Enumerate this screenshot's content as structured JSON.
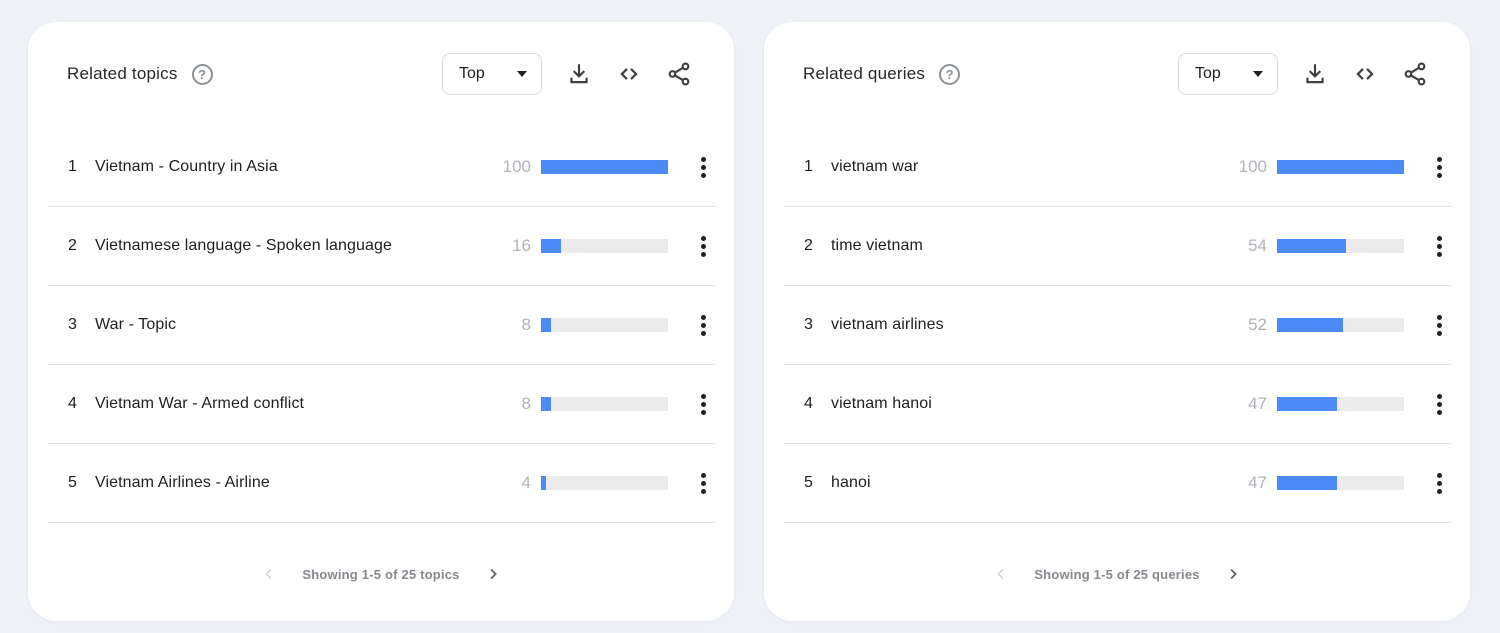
{
  "colors": {
    "page_background": "#eef1f6",
    "card_background": "#ffffff",
    "bar_fill": "#4c8bf5",
    "bar_track": "#ebebeb",
    "divider": "#e4e4e4",
    "text_primary": "#202124",
    "text_value": "#b0b4b9",
    "text_pagination": "#85898e",
    "icon": "#3c4043"
  },
  "cards": [
    {
      "title": "Related topics",
      "help_icon": "help-icon",
      "sort_label": "Top",
      "toolbar_icons": [
        "download-icon",
        "embed-icon",
        "share-icon"
      ],
      "rows": [
        {
          "rank": "1",
          "label": "Vietnam - Country in Asia",
          "value": 100
        },
        {
          "rank": "2",
          "label": "Vietnamese language - Spoken language",
          "value": 16
        },
        {
          "rank": "3",
          "label": "War - Topic",
          "value": 8
        },
        {
          "rank": "4",
          "label": "Vietnam War - Armed conflict",
          "value": 8
        },
        {
          "rank": "5",
          "label": "Vietnam Airlines - Airline",
          "value": 4
        }
      ],
      "pagination": "Showing 1-5 of 25 topics"
    },
    {
      "title": "Related queries",
      "help_icon": "help-icon",
      "sort_label": "Top",
      "toolbar_icons": [
        "download-icon",
        "embed-icon",
        "share-icon"
      ],
      "rows": [
        {
          "rank": "1",
          "label": "vietnam war",
          "value": 100
        },
        {
          "rank": "2",
          "label": "time vietnam",
          "value": 54
        },
        {
          "rank": "3",
          "label": "vietnam airlines",
          "value": 52
        },
        {
          "rank": "4",
          "label": "vietnam hanoi",
          "value": 47
        },
        {
          "rank": "5",
          "label": "hanoi",
          "value": 47
        }
      ],
      "pagination": "Showing 1-5 of 25 queries"
    }
  ]
}
